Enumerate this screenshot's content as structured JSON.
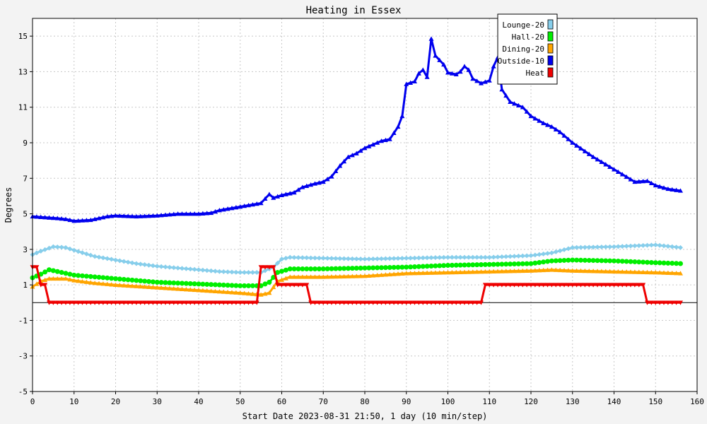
{
  "chart_data": {
    "type": "line",
    "title": "Heating in Essex",
    "xlabel": "Start Date 2023-08-31 21:50, 1 day (10 min/step)",
    "ylabel": "Degrees",
    "xlim": [
      0,
      160
    ],
    "ylim": [
      -5,
      16
    ],
    "x_ticks": [
      0,
      10,
      20,
      30,
      40,
      50,
      60,
      70,
      80,
      90,
      100,
      110,
      120,
      130,
      140,
      150,
      160
    ],
    "y_ticks": [
      -5,
      -3,
      -1,
      1,
      3,
      5,
      7,
      9,
      11,
      13,
      15
    ],
    "grid": true,
    "legend_position": "top-right",
    "series": [
      {
        "name": "Lounge-20",
        "color": "#87ceeb",
        "marker": "diamond",
        "points": [
          [
            0,
            2.7
          ],
          [
            2,
            2.9
          ],
          [
            5,
            3.15
          ],
          [
            8,
            3.1
          ],
          [
            10,
            2.95
          ],
          [
            15,
            2.6
          ],
          [
            20,
            2.4
          ],
          [
            25,
            2.2
          ],
          [
            30,
            2.05
          ],
          [
            35,
            1.95
          ],
          [
            40,
            1.85
          ],
          [
            45,
            1.75
          ],
          [
            50,
            1.7
          ],
          [
            55,
            1.7
          ],
          [
            58,
            2.0
          ],
          [
            60,
            2.45
          ],
          [
            62,
            2.55
          ],
          [
            70,
            2.5
          ],
          [
            80,
            2.45
          ],
          [
            90,
            2.5
          ],
          [
            100,
            2.55
          ],
          [
            110,
            2.55
          ],
          [
            115,
            2.6
          ],
          [
            120,
            2.65
          ],
          [
            125,
            2.8
          ],
          [
            130,
            3.1
          ],
          [
            140,
            3.15
          ],
          [
            145,
            3.2
          ],
          [
            150,
            3.25
          ],
          [
            156,
            3.1
          ]
        ]
      },
      {
        "name": "Hall-20",
        "color": "#00ee00",
        "marker": "circle",
        "points": [
          [
            0,
            1.4
          ],
          [
            2,
            1.6
          ],
          [
            4,
            1.85
          ],
          [
            6,
            1.75
          ],
          [
            10,
            1.55
          ],
          [
            15,
            1.45
          ],
          [
            20,
            1.35
          ],
          [
            25,
            1.25
          ],
          [
            30,
            1.15
          ],
          [
            40,
            1.05
          ],
          [
            50,
            0.95
          ],
          [
            55,
            0.95
          ],
          [
            57,
            1.15
          ],
          [
            59,
            1.7
          ],
          [
            62,
            1.9
          ],
          [
            70,
            1.9
          ],
          [
            80,
            1.95
          ],
          [
            90,
            2.0
          ],
          [
            100,
            2.1
          ],
          [
            110,
            2.15
          ],
          [
            120,
            2.2
          ],
          [
            125,
            2.35
          ],
          [
            130,
            2.4
          ],
          [
            140,
            2.35
          ],
          [
            150,
            2.25
          ],
          [
            156,
            2.2
          ]
        ]
      },
      {
        "name": "Dining-20",
        "color": "#ffa500",
        "marker": "triangle",
        "points": [
          [
            0,
            0.9
          ],
          [
            2,
            1.2
          ],
          [
            4,
            1.35
          ],
          [
            8,
            1.35
          ],
          [
            10,
            1.25
          ],
          [
            15,
            1.1
          ],
          [
            20,
            1.0
          ],
          [
            30,
            0.85
          ],
          [
            40,
            0.7
          ],
          [
            50,
            0.55
          ],
          [
            55,
            0.45
          ],
          [
            57,
            0.55
          ],
          [
            59,
            1.2
          ],
          [
            62,
            1.45
          ],
          [
            70,
            1.45
          ],
          [
            80,
            1.5
          ],
          [
            90,
            1.65
          ],
          [
            100,
            1.7
          ],
          [
            110,
            1.75
          ],
          [
            120,
            1.8
          ],
          [
            125,
            1.85
          ],
          [
            130,
            1.8
          ],
          [
            140,
            1.75
          ],
          [
            150,
            1.7
          ],
          [
            156,
            1.65
          ]
        ]
      },
      {
        "name": "Outside-10",
        "color": "#0000ee",
        "marker": "triangle",
        "points": [
          [
            0,
            4.85
          ],
          [
            3,
            4.8
          ],
          [
            6,
            4.75
          ],
          [
            8,
            4.7
          ],
          [
            10,
            4.6
          ],
          [
            14,
            4.65
          ],
          [
            18,
            4.85
          ],
          [
            20,
            4.9
          ],
          [
            25,
            4.85
          ],
          [
            30,
            4.9
          ],
          [
            35,
            5.0
          ],
          [
            40,
            5.0
          ],
          [
            43,
            5.05
          ],
          [
            45,
            5.2
          ],
          [
            50,
            5.4
          ],
          [
            55,
            5.6
          ],
          [
            57,
            6.1
          ],
          [
            58,
            5.9
          ],
          [
            60,
            6.05
          ],
          [
            63,
            6.2
          ],
          [
            65,
            6.5
          ],
          [
            68,
            6.7
          ],
          [
            70,
            6.8
          ],
          [
            72,
            7.1
          ],
          [
            74,
            7.7
          ],
          [
            76,
            8.2
          ],
          [
            78,
            8.4
          ],
          [
            80,
            8.7
          ],
          [
            82,
            8.9
          ],
          [
            84,
            9.1
          ],
          [
            86,
            9.2
          ],
          [
            88,
            9.9
          ],
          [
            89,
            10.5
          ],
          [
            90,
            12.3
          ],
          [
            92,
            12.45
          ],
          [
            93,
            12.9
          ],
          [
            94,
            13.1
          ],
          [
            95,
            12.7
          ],
          [
            96,
            14.85
          ],
          [
            97,
            13.9
          ],
          [
            99,
            13.4
          ],
          [
            100,
            12.95
          ],
          [
            102,
            12.85
          ],
          [
            103,
            13.0
          ],
          [
            104,
            13.3
          ],
          [
            105,
            13.1
          ],
          [
            106,
            12.6
          ],
          [
            108,
            12.35
          ],
          [
            110,
            12.5
          ],
          [
            111,
            13.3
          ],
          [
            112,
            13.8
          ],
          [
            113,
            12.0
          ],
          [
            115,
            11.3
          ],
          [
            118,
            11.0
          ],
          [
            120,
            10.5
          ],
          [
            123,
            10.1
          ],
          [
            125,
            9.9
          ],
          [
            127,
            9.6
          ],
          [
            130,
            9.0
          ],
          [
            135,
            8.2
          ],
          [
            140,
            7.5
          ],
          [
            145,
            6.8
          ],
          [
            148,
            6.85
          ],
          [
            150,
            6.6
          ],
          [
            153,
            6.4
          ],
          [
            156,
            6.3
          ]
        ]
      },
      {
        "name": "Heat",
        "color": "#ee0000",
        "marker": "triangle-down",
        "points": [
          [
            0,
            2
          ],
          [
            1,
            2
          ],
          [
            2,
            1
          ],
          [
            3,
            1
          ],
          [
            4,
            0
          ],
          [
            54,
            0
          ],
          [
            55,
            2
          ],
          [
            58,
            2
          ],
          [
            59,
            1
          ],
          [
            66,
            1
          ],
          [
            67,
            0
          ],
          [
            108,
            0
          ],
          [
            109,
            1
          ],
          [
            147,
            1
          ],
          [
            148,
            0
          ],
          [
            156,
            0
          ]
        ]
      }
    ]
  }
}
